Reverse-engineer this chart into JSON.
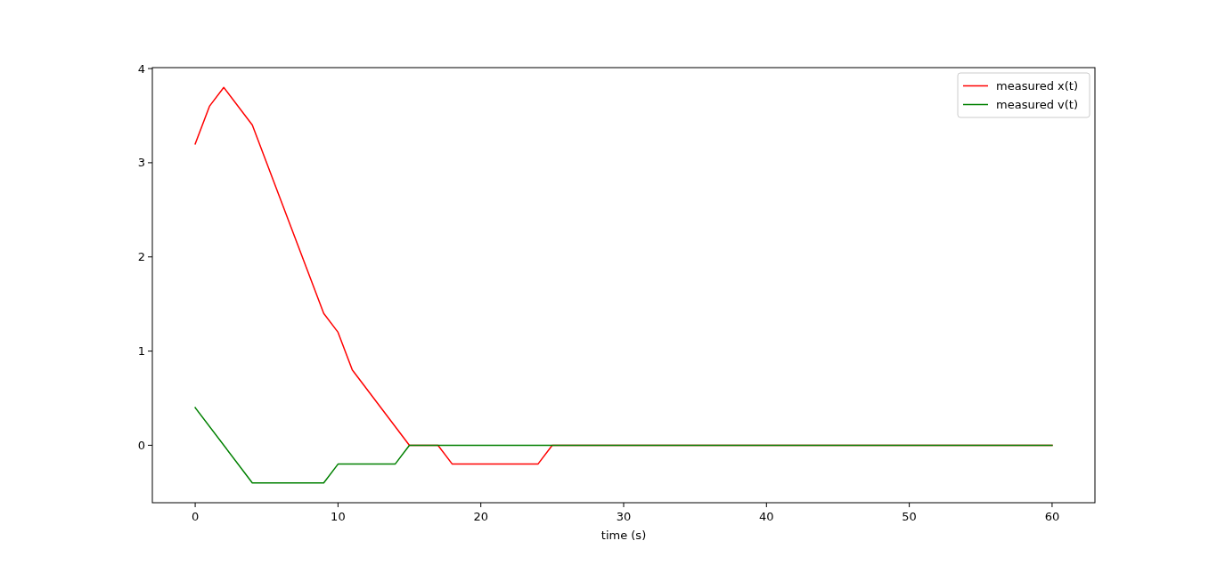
{
  "chart_data": {
    "type": "line",
    "xlabel": "time (s)",
    "series": [
      {
        "name": "measured x(t)",
        "color": "#ff0000",
        "x": [
          0,
          1,
          2,
          4,
          9,
          10,
          11,
          15,
          17,
          18,
          24,
          25,
          60
        ],
        "values": [
          3.2,
          3.6,
          3.8,
          3.4,
          1.4,
          1.2,
          0.8,
          0,
          0,
          -0.2,
          -0.2,
          0,
          0
        ]
      },
      {
        "name": "measured v(t)",
        "color": "#008000",
        "x": [
          0,
          4,
          9,
          10,
          14,
          15,
          60
        ],
        "values": [
          0.4,
          -0.4,
          -0.4,
          -0.2,
          -0.2,
          0,
          0
        ]
      }
    ],
    "xlim": [
      -3,
      63
    ],
    "xticks": [
      0,
      10,
      20,
      30,
      40,
      50,
      60
    ],
    "ylim": [
      -0.61,
      4.01
    ],
    "yticks": [
      0,
      1,
      2,
      3,
      4
    ],
    "grid": false,
    "legend": "top right",
    "marker": "none",
    "line_style": "solid"
  }
}
